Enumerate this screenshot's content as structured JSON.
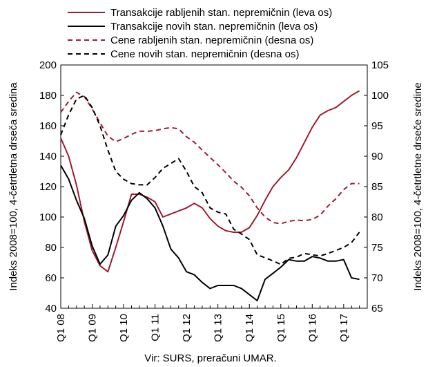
{
  "colors": {
    "used": "#9e1b32",
    "new": "#000000"
  },
  "chart_data": {
    "type": "line",
    "ylabel_left": "Indeks 2008=100, 4-četrtletna drseča sredina",
    "ylabel_right": "Indeks 2008=100, 4-četrtletne drseče sredine",
    "ylim_left": [
      40,
      200
    ],
    "ylim_right": [
      65,
      105
    ],
    "yticks_left": [
      "40",
      "60",
      "80",
      "100",
      "120",
      "140",
      "160",
      "180",
      "200"
    ],
    "yticks_right": [
      "65",
      "70",
      "75",
      "80",
      "85",
      "90",
      "95",
      "100",
      "105"
    ],
    "x_tick_labels": [
      "Q1 08",
      "Q1 09",
      "Q1 10",
      "Q1 11",
      "Q1 12",
      "Q1 13",
      "Q1 14",
      "Q1 15",
      "Q1 16",
      "Q1 17"
    ],
    "source": "Vir: SURS, preračuni UMAR.",
    "series": [
      {
        "name": "Transakcije rabljenih stan. nepremičnin (leva os)",
        "axis": "left",
        "style": "solid",
        "color": "#9e1b32",
        "x": [
          2008.0,
          2008.25,
          2008.5,
          2008.75,
          2009.0,
          2009.25,
          2009.5,
          2009.75,
          2010.0,
          2010.25,
          2010.5,
          2010.75,
          2011.0,
          2011.25,
          2011.5,
          2011.75,
          2012.0,
          2012.25,
          2012.5,
          2012.75,
          2013.0,
          2013.25,
          2013.5,
          2013.75,
          2014.0,
          2014.25,
          2014.5,
          2014.75,
          2015.0,
          2015.25,
          2015.5,
          2015.75,
          2016.0,
          2016.25,
          2016.5,
          2016.75,
          2017.0,
          2017.25,
          2017.5
        ],
        "values": [
          152,
          140,
          121,
          97,
          78,
          68,
          64,
          80,
          97,
          115,
          115,
          113,
          110,
          100,
          102,
          104,
          106,
          109,
          106,
          99,
          94,
          91,
          90,
          90,
          93,
          101,
          111,
          120,
          126,
          131,
          139,
          149,
          159,
          167,
          170,
          172,
          176,
          180,
          183
        ]
      },
      {
        "name": "Transakcije novih stan. nepremičnin (leva os)",
        "axis": "left",
        "style": "solid",
        "color": "#000000",
        "x": [
          2008.0,
          2008.25,
          2008.5,
          2008.75,
          2009.0,
          2009.25,
          2009.5,
          2009.75,
          2010.0,
          2010.25,
          2010.5,
          2010.75,
          2011.0,
          2011.25,
          2011.5,
          2011.75,
          2012.0,
          2012.25,
          2012.5,
          2012.75,
          2013.0,
          2013.25,
          2013.5,
          2013.75,
          2014.0,
          2014.25,
          2014.5,
          2014.75,
          2015.0,
          2015.25,
          2015.5,
          2015.75,
          2016.0,
          2016.25,
          2016.5,
          2016.75,
          2017.0,
          2017.25,
          2017.5
        ],
        "values": [
          134,
          125,
          111,
          99,
          81,
          69,
          75,
          94,
          101,
          111,
          116,
          112,
          106,
          94,
          79,
          73,
          64,
          62,
          57,
          53,
          55,
          55,
          55,
          53,
          49,
          45,
          59,
          63,
          67,
          72,
          71,
          71,
          74,
          73,
          71,
          71,
          72,
          60,
          59
        ]
      },
      {
        "name": "Cene rabljenih stan. nepremičnin (desna os)",
        "axis": "right",
        "style": "dashed",
        "color": "#9e1b32",
        "x": [
          2008.0,
          2008.25,
          2008.5,
          2008.75,
          2009.0,
          2009.25,
          2009.5,
          2009.75,
          2010.0,
          2010.25,
          2010.5,
          2010.75,
          2011.0,
          2011.25,
          2011.5,
          2011.75,
          2012.0,
          2012.25,
          2012.5,
          2012.75,
          2013.0,
          2013.25,
          2013.5,
          2013.75,
          2014.0,
          2014.25,
          2014.5,
          2014.75,
          2015.0,
          2015.25,
          2015.5,
          2015.75,
          2016.0,
          2016.25,
          2016.5,
          2016.75,
          2017.0,
          2017.25,
          2017.5
        ],
        "values": [
          97.2,
          99.0,
          100.5,
          99.8,
          97.8,
          95.5,
          93.3,
          92.4,
          92.9,
          93.6,
          94.1,
          94.1,
          94.2,
          94.5,
          94.7,
          94.5,
          93.2,
          92.3,
          91.0,
          89.8,
          88.6,
          87.3,
          85.9,
          84.9,
          83.5,
          81.5,
          80.0,
          79.1,
          78.9,
          79.3,
          79.5,
          79.4,
          79.6,
          80.3,
          81.8,
          83.0,
          84.5,
          85.5,
          85.5
        ]
      },
      {
        "name": "Cene novih stan. nepremičnin (desna os)",
        "axis": "right",
        "style": "dashed",
        "color": "#000000",
        "x": [
          2008.0,
          2008.25,
          2008.5,
          2008.75,
          2009.0,
          2009.25,
          2009.5,
          2009.75,
          2010.0,
          2010.25,
          2010.5,
          2010.75,
          2011.0,
          2011.25,
          2011.5,
          2011.75,
          2012.0,
          2012.25,
          2012.5,
          2012.75,
          2013.0,
          2013.25,
          2013.5,
          2013.75,
          2014.0,
          2014.25,
          2014.5,
          2014.75,
          2015.0,
          2015.25,
          2015.5,
          2015.75,
          2016.0,
          2016.25,
          2016.5,
          2016.75,
          2017.0,
          2017.25,
          2017.5
        ],
        "values": [
          93.5,
          96.8,
          99.4,
          100.0,
          98.0,
          95.0,
          91.0,
          87.5,
          86.2,
          85.5,
          85.3,
          85.3,
          86.5,
          88.0,
          88.8,
          89.6,
          87.5,
          85.0,
          84.0,
          81.5,
          80.8,
          80.5,
          78.0,
          77.2,
          76.3,
          73.8,
          73.3,
          72.8,
          72.2,
          73.2,
          73.4,
          74.0,
          73.8,
          73.6,
          74.0,
          74.5,
          75.0,
          75.8,
          77.5
        ]
      }
    ]
  }
}
